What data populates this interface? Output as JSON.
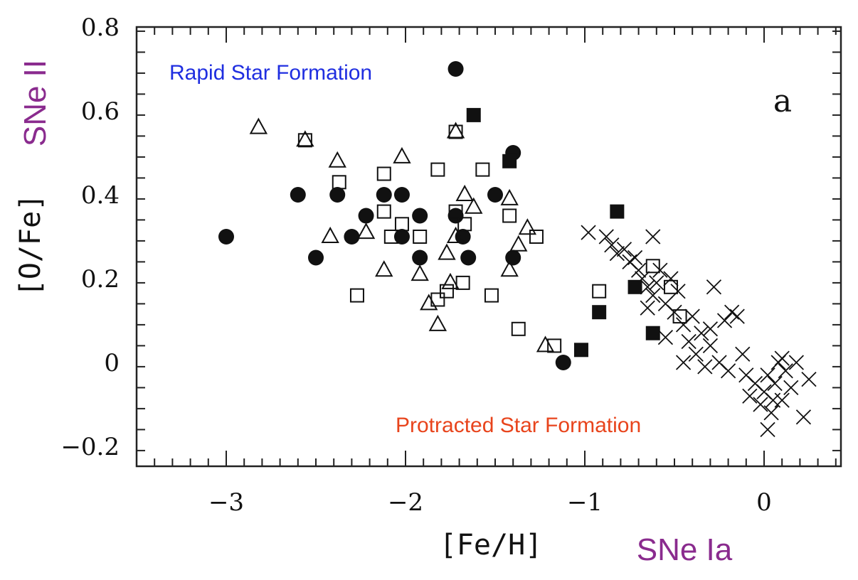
{
  "chart_data": {
    "type": "scatter",
    "title": "",
    "xlabel": "[Fe/H]",
    "ylabel": "[O/Fe]",
    "xlim": [
      -3.5,
      0.4
    ],
    "ylim": [
      -0.26,
      0.8
    ],
    "x_ticks": [
      -3,
      -2,
      -1,
      0
    ],
    "x_tick_labels": [
      "−3",
      "−2",
      "−1",
      "0"
    ],
    "y_ticks": [
      -0.2,
      0,
      0.2,
      0.4,
      0.6,
      0.8
    ],
    "y_tick_labels": [
      "−0.2",
      "0",
      "0.2",
      "0.4",
      "0.6",
      "0.8"
    ],
    "panel_label": "a",
    "annotations": {
      "rapid": "Rapid Star Formation",
      "protracted": "Protracted Star Formation",
      "sne_ii": "SNe II",
      "sne_ia": "SNe Ia"
    },
    "series": [
      {
        "marker": "filled-circle",
        "points": [
          [
            -3.0,
            0.3
          ],
          [
            -2.6,
            0.4
          ],
          [
            -2.5,
            0.25
          ],
          [
            -2.38,
            0.4
          ],
          [
            -2.3,
            0.3
          ],
          [
            -2.22,
            0.35
          ],
          [
            -2.12,
            0.4
          ],
          [
            -2.02,
            0.4
          ],
          [
            -2.02,
            0.3
          ],
          [
            -1.92,
            0.35
          ],
          [
            -1.92,
            0.25
          ],
          [
            -1.72,
            0.7
          ],
          [
            -1.72,
            0.35
          ],
          [
            -1.68,
            0.3
          ],
          [
            -1.65,
            0.25
          ],
          [
            -1.5,
            0.4
          ],
          [
            -1.4,
            0.5
          ],
          [
            -1.4,
            0.25
          ],
          [
            -1.12,
            0.0
          ]
        ]
      },
      {
        "marker": "open-triangle",
        "points": [
          [
            -2.82,
            0.56
          ],
          [
            -2.56,
            0.53
          ],
          [
            -2.42,
            0.3
          ],
          [
            -2.38,
            0.48
          ],
          [
            -2.22,
            0.31
          ],
          [
            -2.12,
            0.22
          ],
          [
            -2.02,
            0.49
          ],
          [
            -1.92,
            0.21
          ],
          [
            -1.87,
            0.14
          ],
          [
            -1.82,
            0.09
          ],
          [
            -1.77,
            0.26
          ],
          [
            -1.75,
            0.19
          ],
          [
            -1.72,
            0.55
          ],
          [
            -1.72,
            0.3
          ],
          [
            -1.67,
            0.4
          ],
          [
            -1.62,
            0.37
          ],
          [
            -1.42,
            0.39
          ],
          [
            -1.42,
            0.22
          ],
          [
            -1.37,
            0.28
          ],
          [
            -1.32,
            0.32
          ],
          [
            -1.22,
            0.04
          ]
        ]
      },
      {
        "marker": "open-square",
        "points": [
          [
            -2.56,
            0.53
          ],
          [
            -2.37,
            0.43
          ],
          [
            -2.27,
            0.16
          ],
          [
            -2.12,
            0.45
          ],
          [
            -2.12,
            0.36
          ],
          [
            -2.08,
            0.3
          ],
          [
            -2.02,
            0.33
          ],
          [
            -1.92,
            0.3
          ],
          [
            -1.82,
            0.46
          ],
          [
            -1.82,
            0.15
          ],
          [
            -1.77,
            0.17
          ],
          [
            -1.72,
            0.55
          ],
          [
            -1.72,
            0.36
          ],
          [
            -1.68,
            0.19
          ],
          [
            -1.67,
            0.33
          ],
          [
            -1.57,
            0.46
          ],
          [
            -1.52,
            0.16
          ],
          [
            -1.42,
            0.35
          ],
          [
            -1.37,
            0.08
          ],
          [
            -1.27,
            0.3
          ],
          [
            -1.17,
            0.04
          ],
          [
            -0.92,
            0.17
          ],
          [
            -0.62,
            0.23
          ],
          [
            -0.52,
            0.18
          ],
          [
            -0.47,
            0.11
          ]
        ]
      },
      {
        "marker": "filled-square",
        "points": [
          [
            -1.62,
            0.59
          ],
          [
            -1.42,
            0.48
          ],
          [
            -1.02,
            0.03
          ],
          [
            -0.92,
            0.12
          ],
          [
            -0.82,
            0.36
          ],
          [
            -0.72,
            0.18
          ],
          [
            -0.62,
            0.07
          ]
        ]
      },
      {
        "marker": "cross",
        "points": [
          [
            -0.98,
            0.31
          ],
          [
            -0.88,
            0.3
          ],
          [
            -0.85,
            0.28
          ],
          [
            -0.82,
            0.26
          ],
          [
            -0.78,
            0.27
          ],
          [
            -0.75,
            0.24
          ],
          [
            -0.72,
            0.25
          ],
          [
            -0.7,
            0.22
          ],
          [
            -0.68,
            0.2
          ],
          [
            -0.65,
            0.18
          ],
          [
            -0.62,
            0.3
          ],
          [
            -0.62,
            0.16
          ],
          [
            -0.6,
            0.19
          ],
          [
            -0.58,
            0.22
          ],
          [
            -0.55,
            0.14
          ],
          [
            -0.52,
            0.2
          ],
          [
            -0.5,
            0.12
          ],
          [
            -0.48,
            0.17
          ],
          [
            -0.45,
            0.09
          ],
          [
            -0.42,
            0.05
          ],
          [
            -0.4,
            0.11
          ],
          [
            -0.38,
            0.02
          ],
          [
            -0.35,
            0.07
          ],
          [
            -0.33,
            -0.01
          ],
          [
            -0.3,
            0.04
          ],
          [
            -0.28,
            0.18
          ],
          [
            -0.25,
            0.0
          ],
          [
            -0.22,
            0.1
          ],
          [
            -0.18,
            0.12
          ],
          [
            -0.15,
            0.11
          ],
          [
            -0.12,
            0.02
          ],
          [
            -0.1,
            -0.03
          ],
          [
            -0.08,
            -0.08
          ],
          [
            -0.05,
            -0.05
          ],
          [
            -0.02,
            -0.1
          ],
          [
            0.0,
            -0.07
          ],
          [
            0.02,
            -0.03
          ],
          [
            0.04,
            -0.12
          ],
          [
            0.06,
            -0.05
          ],
          [
            0.08,
            0.0
          ],
          [
            0.1,
            -0.09
          ],
          [
            0.12,
            -0.02
          ],
          [
            0.15,
            -0.06
          ],
          [
            0.18,
            0.0
          ],
          [
            0.22,
            -0.13
          ],
          [
            0.25,
            -0.04
          ],
          [
            -0.65,
            0.13
          ],
          [
            -0.55,
            0.06
          ],
          [
            -0.45,
            0.0
          ],
          [
            -0.3,
            0.08
          ],
          [
            -0.2,
            -0.02
          ],
          [
            0.02,
            -0.16
          ],
          [
            0.1,
            0.01
          ],
          [
            0.05,
            -0.09
          ]
        ]
      }
    ],
    "grid": false,
    "legend": "none"
  }
}
